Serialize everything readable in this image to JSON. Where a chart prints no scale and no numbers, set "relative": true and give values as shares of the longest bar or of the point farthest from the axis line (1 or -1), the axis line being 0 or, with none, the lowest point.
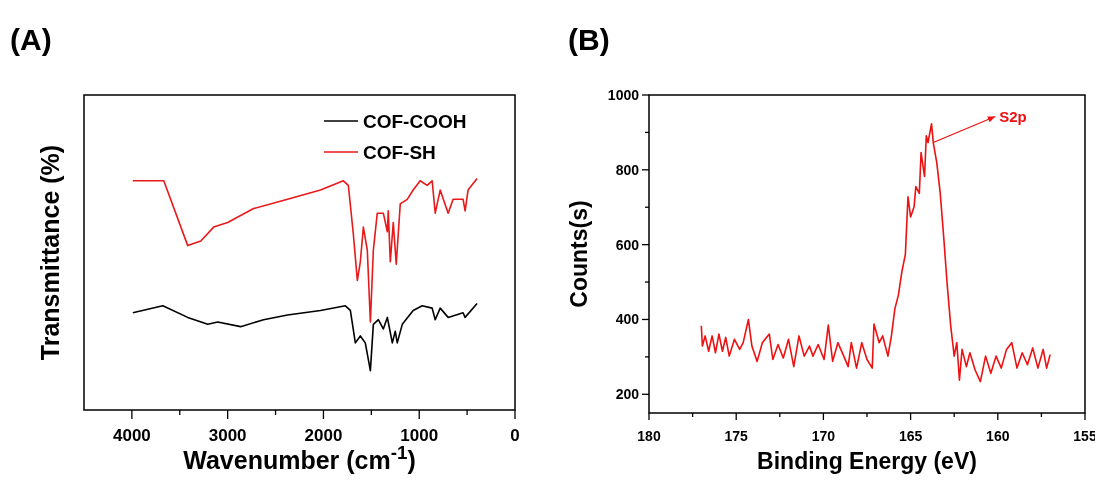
{
  "chart_data": [
    {
      "type": "line",
      "title": "(A)",
      "xlabel": "Wavenumber (cm$^{-1}$)",
      "ylabel": "Transmittance (%)",
      "relative": true,
      "xlim": [
        4500,
        0
      ],
      "xticks": [
        4000,
        {
          "value": 3500,
          "label": null
        },
        3000,
        {
          "value": 2500,
          "label": null
        },
        2000,
        {
          "value": 1500,
          "label": null
        },
        1000,
        {
          "value": 500,
          "label": null
        },
        0
      ],
      "legend": "top right",
      "tick_labels": "x",
      "series": [
        {
          "name": "COF-COOH",
          "color": "#000000",
          "x": [
            3990,
            3677,
            3417,
            3208,
            3104,
            2865,
            2625,
            2375,
            2031,
            1771,
            1719,
            1667,
            1615,
            1563,
            1510,
            1479,
            1427,
            1375,
            1333,
            1281,
            1250,
            1229,
            1177,
            1063,
            969,
            865,
            833,
            781,
            698,
            542,
            521,
            396
          ],
          "values": [
            0.42,
            0.45,
            0.4,
            0.37,
            0.38,
            0.36,
            0.39,
            0.41,
            0.43,
            0.45,
            0.43,
            0.29,
            0.32,
            0.29,
            0.17,
            0.37,
            0.39,
            0.35,
            0.4,
            0.29,
            0.34,
            0.29,
            0.37,
            0.43,
            0.45,
            0.44,
            0.39,
            0.44,
            0.4,
            0.42,
            0.4,
            0.46
          ]
        },
        {
          "name": "COF-SH",
          "color": "#e8191a",
          "x": [
            3990,
            3667,
            3417,
            3281,
            3146,
            3000,
            2729,
            2375,
            2031,
            1792,
            1740,
            1688,
            1646,
            1615,
            1583,
            1542,
            1510,
            1479,
            1438,
            1375,
            1333,
            1323,
            1302,
            1271,
            1240,
            1198,
            1125,
            1063,
            990,
            917,
            865,
            833,
            781,
            698,
            646,
            542,
            521,
            490,
            396
          ],
          "values": [
            0.99,
            0.99,
            0.71,
            0.73,
            0.79,
            0.81,
            0.87,
            0.91,
            0.95,
            0.99,
            0.97,
            0.76,
            0.56,
            0.64,
            0.79,
            0.69,
            0.38,
            0.69,
            0.85,
            0.85,
            0.77,
            0.86,
            0.64,
            0.81,
            0.63,
            0.89,
            0.91,
            0.95,
            0.99,
            0.97,
            0.99,
            0.85,
            0.95,
            0.85,
            0.91,
            0.91,
            0.86,
            0.95,
            1.0
          ]
        }
      ]
    },
    {
      "type": "line",
      "title": "(B)",
      "xlabel": "Binding Energy (eV)",
      "ylabel": "Counts(s)",
      "xlim": [
        180,
        155
      ],
      "ylim": [
        150,
        1000
      ],
      "xticks": [
        180,
        {
          "value": 177.5,
          "label": null
        },
        175,
        {
          "value": 172.5,
          "label": null
        },
        170,
        {
          "value": 167.5,
          "label": null
        },
        165,
        {
          "value": 162.5,
          "label": null
        },
        160,
        {
          "value": 157.5,
          "label": null
        },
        155
      ],
      "yticks": [
        200,
        {
          "value": 300,
          "label": null
        },
        400,
        {
          "value": 500,
          "label": null
        },
        600,
        {
          "value": 700,
          "label": null
        },
        800,
        {
          "value": 900,
          "label": null
        },
        1000
      ],
      "annotations": [
        {
          "text": "S2p",
          "x": 163.7,
          "y": 873
        }
      ],
      "series": [
        {
          "color": "#ee1111",
          "x": [
            177.0,
            176.94,
            176.78,
            176.58,
            176.38,
            176.19,
            175.99,
            175.79,
            175.6,
            175.4,
            175.1,
            174.8,
            174.6,
            174.3,
            174.1,
            173.8,
            173.5,
            173.1,
            172.9,
            172.6,
            172.3,
            172.0,
            171.7,
            171.4,
            171.1,
            170.8,
            170.6,
            170.3,
            169.96,
            169.72,
            169.47,
            169.17,
            168.87,
            168.58,
            168.4,
            168.1,
            167.8,
            167.5,
            167.2,
            167.1,
            166.8,
            166.6,
            166.3,
            166.1,
            165.9,
            165.7,
            165.5,
            165.3,
            165.15,
            165.0,
            164.8,
            164.7,
            164.5,
            164.4,
            164.2,
            164.1,
            164.0,
            163.8,
            163.7,
            163.5,
            163.3,
            163.1,
            162.9,
            162.7,
            162.5,
            162.35,
            162.2,
            162.05,
            161.8,
            161.6,
            161.3,
            161.0,
            160.7,
            160.4,
            160.1,
            159.8,
            159.5,
            159.2,
            158.9,
            158.6,
            158.3,
            158.0,
            157.7,
            157.4,
            157.2,
            157.0
          ],
          "values": [
            383,
            329,
            356,
            315,
            356,
            311,
            361,
            315,
            352,
            302,
            347,
            320,
            338,
            400,
            329,
            288,
            338,
            361,
            293,
            333,
            297,
            347,
            274,
            356,
            302,
            329,
            302,
            333,
            293,
            385,
            288,
            338,
            306,
            274,
            338,
            270,
            338,
            293,
            270,
            388,
            338,
            356,
            302,
            356,
            429,
            465,
            528,
            574,
            728,
            674,
            701,
            755,
            737,
            846,
            782,
            891,
            873,
            923,
            873,
            819,
            737,
            619,
            492,
            383,
            302,
            338,
            238,
            320,
            274,
            311,
            265,
            234,
            302,
            256,
            302,
            270,
            320,
            338,
            270,
            311,
            279,
            324,
            270,
            320,
            270,
            306
          ]
        }
      ]
    }
  ]
}
